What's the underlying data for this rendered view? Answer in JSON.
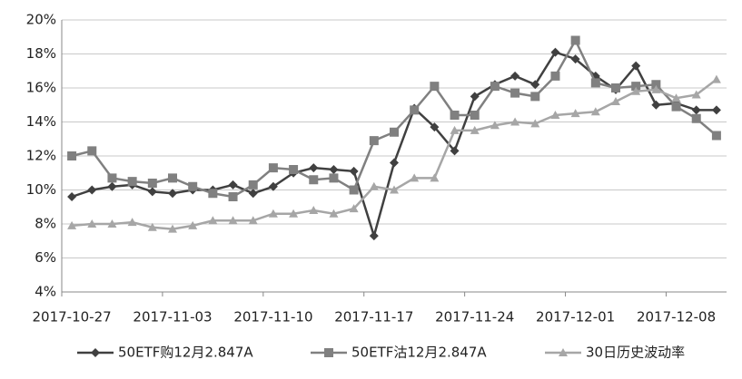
{
  "chart_data": {
    "type": "line",
    "categories": [
      "2017-10-27",
      null,
      null,
      null,
      null,
      "2017-11-03",
      null,
      null,
      null,
      null,
      "2017-11-10",
      null,
      null,
      null,
      null,
      "2017-11-17",
      null,
      null,
      null,
      null,
      "2017-11-24",
      null,
      null,
      null,
      null,
      "2017-12-01",
      null,
      null,
      null,
      null,
      "2017-12-08",
      null,
      null
    ],
    "series": [
      {
        "name": "50ETF购12月2.847A",
        "color": "#404040",
        "marker": "diamond",
        "values": [
          9.6,
          10.0,
          10.2,
          10.3,
          9.9,
          9.8,
          10.0,
          10.0,
          10.3,
          9.8,
          10.2,
          11.0,
          11.3,
          11.2,
          11.1,
          7.3,
          11.6,
          14.8,
          13.7,
          12.3,
          15.5,
          16.2,
          16.7,
          16.2,
          18.1,
          17.7,
          16.7,
          15.9,
          17.3,
          15.0,
          15.1,
          14.7,
          14.7
        ]
      },
      {
        "name": "50ETF沽12月2.847A",
        "color": "#808080",
        "marker": "square",
        "values": [
          12.0,
          12.3,
          10.7,
          10.5,
          10.4,
          10.7,
          10.2,
          9.8,
          9.6,
          10.3,
          11.3,
          11.2,
          10.6,
          10.7,
          10.0,
          12.9,
          13.4,
          14.7,
          16.1,
          14.4,
          14.4,
          16.1,
          15.7,
          15.5,
          16.7,
          18.8,
          16.3,
          16.0,
          16.1,
          16.2,
          14.9,
          14.2,
          13.2
        ]
      },
      {
        "name": "30日历史波动率",
        "color": "#a6a6a6",
        "marker": "triangle",
        "values": [
          7.9,
          8.0,
          8.0,
          8.1,
          7.8,
          7.7,
          7.9,
          8.2,
          8.2,
          8.2,
          8.6,
          8.6,
          8.8,
          8.6,
          8.9,
          10.2,
          10.0,
          10.7,
          10.7,
          13.5,
          13.5,
          13.8,
          14.0,
          13.9,
          14.4,
          14.5,
          14.6,
          15.2,
          15.8,
          15.9,
          15.4,
          15.6,
          16.5
        ]
      }
    ],
    "ylim": [
      4,
      20
    ],
    "yticks": [
      {
        "value": 4,
        "label": "4%"
      },
      {
        "value": 6,
        "label": "6%"
      },
      {
        "value": 8,
        "label": "8%"
      },
      {
        "value": 10,
        "label": "10%"
      },
      {
        "value": 12,
        "label": "12%"
      },
      {
        "value": 14,
        "label": "14%"
      },
      {
        "value": 16,
        "label": "16%"
      },
      {
        "value": 18,
        "label": "18%"
      },
      {
        "value": 20,
        "label": "20%"
      }
    ],
    "grid": true,
    "legend": "bottom"
  }
}
